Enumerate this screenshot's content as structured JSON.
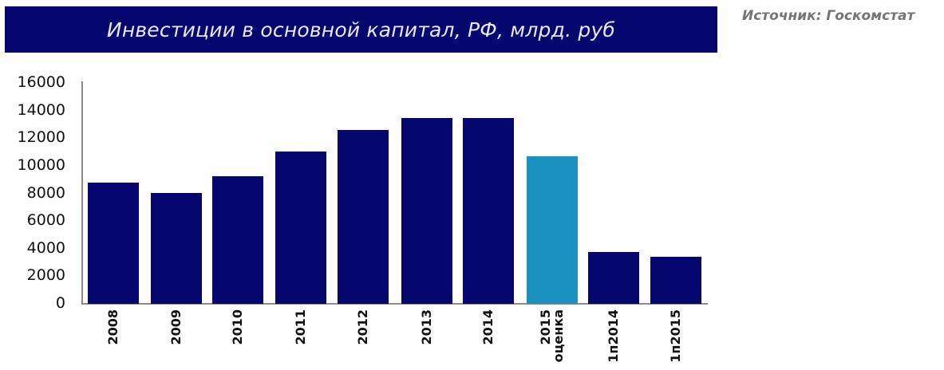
{
  "header": {
    "title": "Инвестиции в основной капитал, РФ, млрд. руб",
    "source": "Источник: Госкомстат"
  },
  "colors": {
    "primary_bar": "#06066f",
    "highlight_bar": "#1b91bf",
    "title_background": "#06066f",
    "axis": "#8c8c8c"
  },
  "chart_data": {
    "type": "bar",
    "title": "Инвестиции в основной капитал, РФ, млрд. руб",
    "source": "Источник: Госкомстат",
    "xlabel": "",
    "ylabel": "",
    "categories": [
      "2008",
      "2009",
      "2010",
      "2011",
      "2012",
      "2013",
      "2014",
      "2015 оценка",
      "1п2014",
      "1п2015"
    ],
    "values": [
      8780,
      8030,
      9240,
      11040,
      12590,
      13450,
      13460,
      10690,
      3750,
      3410
    ],
    "highlighted": [
      "2015 оценка"
    ],
    "yticks": [
      0,
      2000,
      4000,
      6000,
      8000,
      10000,
      12000,
      14000,
      16000
    ],
    "ylim": [
      0,
      16000
    ],
    "grid": false,
    "legend": null
  }
}
